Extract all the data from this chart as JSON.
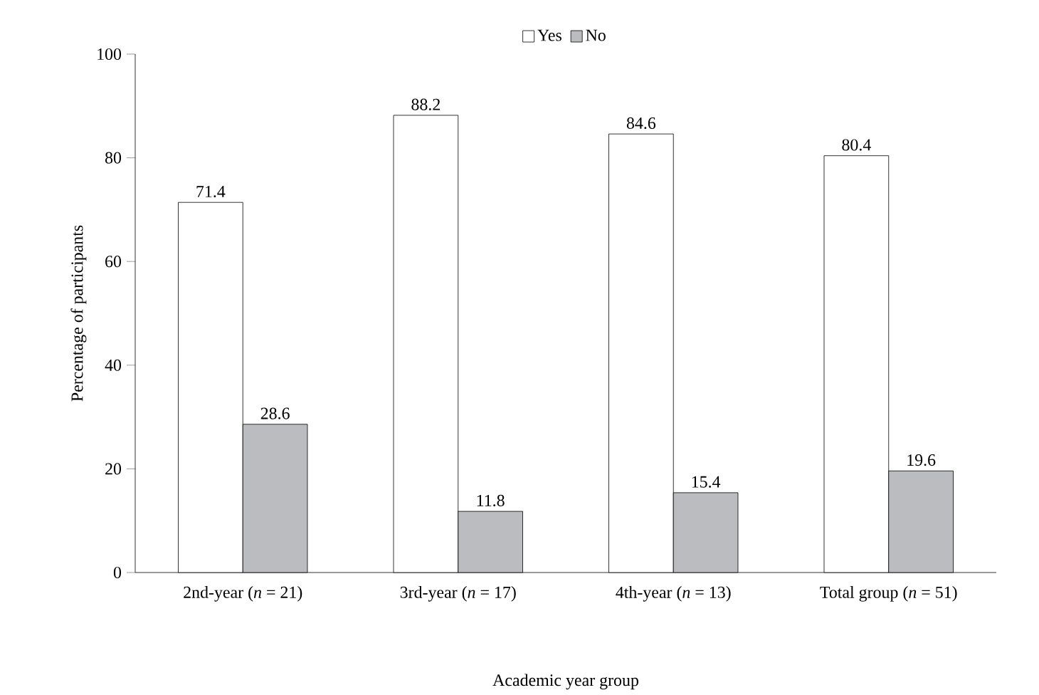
{
  "chart_data": {
    "type": "bar",
    "xlabel": "Academic year group",
    "ylabel": "Percentage of participants",
    "categories": [
      "2nd-year (*n* = 21)",
      "3rd-year (*n* = 17)",
      "4th-year (*n* = 13)",
      "Total group (*n* = 51)"
    ],
    "series": [
      {
        "name": "Yes",
        "color": "#ffffff",
        "values": [
          71.4,
          88.2,
          84.6,
          80.4
        ]
      },
      {
        "name": "No",
        "color": "#bbbcc0",
        "values": [
          28.6,
          11.8,
          15.4,
          19.6
        ]
      }
    ],
    "ylim": [
      0,
      100
    ],
    "yticks": [
      0,
      20,
      40,
      60,
      80,
      100
    ],
    "grid": false,
    "legend": "top",
    "data_labels": true
  }
}
